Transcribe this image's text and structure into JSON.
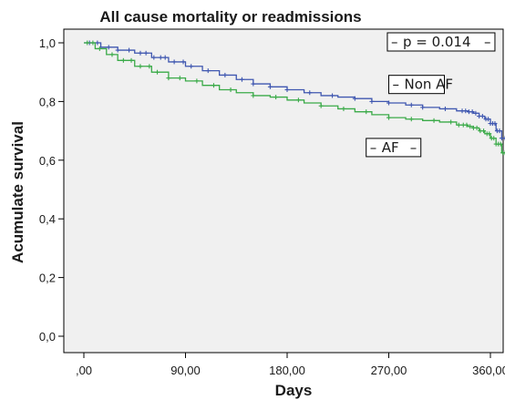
{
  "chart_data": {
    "type": "line",
    "subtype": "kaplan-meier",
    "title": "All cause mortality or readmissions",
    "xlabel": "Days",
    "ylabel": "Acumulate survival",
    "xlim": [
      0,
      380
    ],
    "ylim": [
      0,
      1.0
    ],
    "x_ticks": [
      0,
      90,
      180,
      270,
      360
    ],
    "x_tick_labels": [
      ",00",
      "90,00",
      "180,00",
      "270,00",
      "360,00"
    ],
    "y_ticks": [
      0,
      0.2,
      0.4,
      0.6,
      0.8,
      1.0
    ],
    "y_tick_labels": [
      "0,0",
      "0,2",
      "0,4",
      "0,6",
      "0,8",
      "1,0"
    ],
    "grid": false,
    "background": "#f0f0f0",
    "annotations": [
      {
        "text": "p = 0.014",
        "x": 364,
        "y": 1.0
      },
      {
        "text": "Non AF",
        "x": 270,
        "y": 0.855
      },
      {
        "text": "AF",
        "x": 250,
        "y": 0.64
      }
    ],
    "series": [
      {
        "name": "Non AF",
        "label": "Non AF",
        "color": "#3f57b0",
        "x": [
          0,
          15,
          30,
          45,
          60,
          75,
          90,
          105,
          120,
          135,
          150,
          165,
          180,
          195,
          210,
          225,
          240,
          255,
          270,
          285,
          300,
          315,
          330,
          340,
          345,
          350,
          355,
          360,
          365,
          370,
          375,
          380
        ],
        "y": [
          1.0,
          0.985,
          0.975,
          0.965,
          0.95,
          0.935,
          0.92,
          0.905,
          0.89,
          0.875,
          0.86,
          0.85,
          0.84,
          0.83,
          0.82,
          0.815,
          0.81,
          0.8,
          0.795,
          0.788,
          0.78,
          0.775,
          0.768,
          0.765,
          0.76,
          0.75,
          0.74,
          0.725,
          0.7,
          0.675,
          0.64,
          0.61
        ],
        "censor_x": [
          5,
          12,
          22,
          30,
          40,
          50,
          55,
          62,
          68,
          72,
          80,
          88,
          95,
          110,
          125,
          140,
          150,
          165,
          180,
          200,
          220,
          240,
          255,
          270,
          290,
          300,
          320,
          335,
          338,
          341,
          344,
          347,
          350,
          353,
          356,
          358,
          360,
          362,
          364,
          366,
          368,
          370,
          373,
          376
        ]
      },
      {
        "name": "AF",
        "label": "AF",
        "color": "#3aaa48",
        "x": [
          0,
          10,
          20,
          30,
          45,
          60,
          75,
          90,
          105,
          120,
          135,
          150,
          165,
          180,
          195,
          210,
          225,
          240,
          255,
          270,
          285,
          300,
          315,
          330,
          340,
          345,
          350,
          355,
          360,
          365,
          370,
          375,
          380
        ],
        "y": [
          1.0,
          0.98,
          0.96,
          0.94,
          0.92,
          0.9,
          0.88,
          0.87,
          0.855,
          0.84,
          0.83,
          0.82,
          0.815,
          0.805,
          0.795,
          0.785,
          0.775,
          0.765,
          0.755,
          0.745,
          0.74,
          0.735,
          0.73,
          0.72,
          0.715,
          0.71,
          0.7,
          0.69,
          0.675,
          0.655,
          0.625,
          0.59,
          0.545
        ],
        "censor_x": [
          3,
          8,
          14,
          25,
          35,
          42,
          50,
          58,
          65,
          75,
          85,
          100,
          115,
          130,
          150,
          170,
          190,
          210,
          230,
          250,
          270,
          290,
          310,
          325,
          332,
          336,
          339,
          342,
          345,
          348,
          351,
          354,
          357,
          359,
          361,
          363,
          365,
          367,
          369,
          371,
          373,
          375,
          377,
          379
        ]
      }
    ]
  }
}
